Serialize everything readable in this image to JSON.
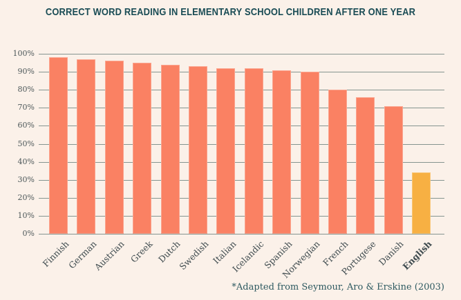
{
  "title": "CORRECT WORD READING IN ELEMENTARY SCHOOL CHILDREN AFTER ONE YEAR",
  "footnote": "*Adapted from Seymour, Aro & Erskine (2003)",
  "colors": {
    "background": "#FBF1E9",
    "bar": "#FA8163",
    "bar_highlight": "#F7B043",
    "gridline": "#84948F",
    "title": "#1A4C55",
    "y_axis_label": "#4D585A",
    "x_axis_label": "#3F4B4F",
    "footnote": "#2D5960"
  },
  "chart_data": {
    "type": "bar",
    "title": "CORRECT WORD READING IN ELEMENTARY SCHOOL CHILDREN AFTER ONE YEAR",
    "categories": [
      "Finnish",
      "German",
      "Austrian",
      "Greek",
      "Dutch",
      "Swedish",
      "Italian",
      "Icelandic",
      "Spanish",
      "Norwegian",
      "French",
      "Portugese",
      "Danish",
      "English"
    ],
    "values": [
      98,
      97,
      96,
      95,
      94,
      93,
      92,
      92,
      91,
      90,
      80,
      76,
      71,
      34
    ],
    "highlight_category": "English",
    "xlabel": "",
    "ylabel": "",
    "y_ticks": [
      "100%",
      "90%",
      "80%",
      "70%",
      "60%",
      "50%",
      "40%",
      "30%",
      "20%",
      "10%",
      "0%"
    ],
    "ylim": [
      0,
      100
    ],
    "grid": true,
    "legend": "none",
    "annotation": "*Adapted from Seymour, Aro & Erskine (2003)"
  }
}
